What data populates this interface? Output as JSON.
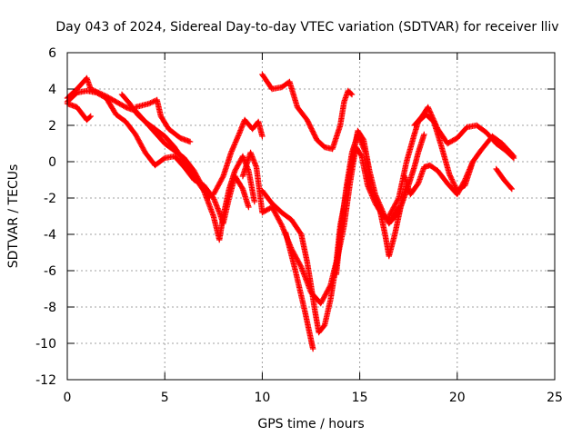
{
  "chart_data": {
    "type": "scatter",
    "title": "Day 043 of 2024, Sidereal Day-to-day VTEC variation (SDTVAR) for receiver lliv",
    "xlabel": "GPS time / hours",
    "ylabel": "SDTVAR / TECUs",
    "xlim": [
      0,
      25
    ],
    "ylim": [
      -12,
      6
    ],
    "xticks": [
      0,
      5,
      10,
      15,
      20,
      25
    ],
    "yticks": [
      -12,
      -10,
      -8,
      -6,
      -4,
      -2,
      0,
      2,
      4,
      6
    ],
    "grid": true,
    "marker": "plus",
    "color": "#ff0000",
    "series": [
      {
        "values": [
          [
            0,
            3.5
          ],
          [
            0.5,
            4.0
          ],
          [
            1.0,
            4.6
          ],
          [
            1.2,
            4.0
          ],
          [
            2.0,
            3.6
          ],
          [
            2.5,
            3.3
          ],
          [
            3.0,
            3.0
          ],
          [
            3.5,
            2.8
          ],
          [
            4.0,
            2.2
          ],
          [
            4.5,
            1.8
          ],
          [
            5.0,
            1.4
          ],
          [
            5.5,
            0.8
          ],
          [
            6.0,
            0.0
          ],
          [
            6.5,
            -0.8
          ],
          [
            7.0,
            -1.6
          ],
          [
            7.5,
            -3.0
          ],
          [
            7.8,
            -4.3
          ],
          [
            8.0,
            -3.0
          ],
          [
            8.3,
            -1.5
          ],
          [
            8.6,
            -0.5
          ],
          [
            9.0,
            0.3
          ],
          [
            9.3,
            -0.5
          ],
          [
            9.6,
            -2.2
          ]
        ]
      },
      {
        "values": [
          [
            0,
            3.3
          ],
          [
            0.5,
            3.8
          ],
          [
            1.0,
            3.9
          ],
          [
            1.5,
            3.8
          ],
          [
            2.0,
            3.5
          ],
          [
            2.5,
            2.6
          ],
          [
            3.0,
            2.2
          ],
          [
            3.5,
            1.5
          ],
          [
            4.0,
            0.5
          ],
          [
            4.5,
            -0.2
          ],
          [
            5.0,
            0.2
          ],
          [
            5.5,
            0.3
          ],
          [
            6.0,
            -0.3
          ],
          [
            6.5,
            -1.0
          ],
          [
            7.0,
            -1.3
          ],
          [
            7.5,
            -2.0
          ],
          [
            7.8,
            -2.8
          ],
          [
            8.0,
            -3.4
          ],
          [
            8.3,
            -2.0
          ],
          [
            8.6,
            -0.8
          ],
          [
            9.0,
            -1.5
          ],
          [
            9.3,
            -2.5
          ]
        ]
      },
      {
        "values": [
          [
            0,
            3.2
          ],
          [
            0.5,
            3.0
          ],
          [
            1.0,
            2.3
          ],
          [
            1.2,
            2.5
          ]
        ]
      },
      {
        "values": [
          [
            2.8,
            3.7
          ],
          [
            3.2,
            3.2
          ],
          [
            3.6,
            2.6
          ],
          [
            4.0,
            2.2
          ],
          [
            4.5,
            1.6
          ],
          [
            5.0,
            1.0
          ],
          [
            5.5,
            0.6
          ],
          [
            6.0,
            0.2
          ],
          [
            6.5,
            -0.5
          ],
          [
            7.0,
            -1.5
          ],
          [
            7.3,
            -2.0
          ]
        ]
      },
      {
        "values": [
          [
            3.5,
            3.0
          ],
          [
            4.2,
            3.2
          ],
          [
            4.6,
            3.4
          ],
          [
            4.8,
            2.5
          ],
          [
            5.2,
            1.8
          ],
          [
            5.8,
            1.3
          ],
          [
            6.3,
            1.1
          ]
        ]
      },
      {
        "values": [
          [
            7.5,
            -1.8
          ],
          [
            8.0,
            -0.8
          ],
          [
            8.4,
            0.5
          ],
          [
            8.8,
            1.5
          ],
          [
            9.1,
            2.3
          ],
          [
            9.5,
            1.8
          ],
          [
            9.8,
            2.2
          ],
          [
            10.0,
            1.4
          ]
        ]
      },
      {
        "values": [
          [
            9.0,
            -0.8
          ],
          [
            9.4,
            0.5
          ],
          [
            9.7,
            -0.3
          ],
          [
            10.0,
            -2.8
          ],
          [
            10.5,
            -2.5
          ],
          [
            11.0,
            -3.5
          ],
          [
            11.5,
            -4.8
          ],
          [
            12.0,
            -5.8
          ],
          [
            12.5,
            -7.2
          ],
          [
            13.0,
            -7.8
          ],
          [
            13.5,
            -6.8
          ],
          [
            13.8,
            -5.5
          ],
          [
            14.0,
            -3.5
          ],
          [
            14.3,
            -1.8
          ],
          [
            14.6,
            0.0
          ],
          [
            14.9,
            1.7
          ],
          [
            15.2,
            1.2
          ],
          [
            15.5,
            -0.5
          ],
          [
            15.8,
            -1.8
          ],
          [
            16.2,
            -2.8
          ],
          [
            16.5,
            -3.4
          ],
          [
            17.0,
            -2.8
          ],
          [
            17.4,
            -1.3
          ]
        ]
      },
      {
        "values": [
          [
            10.0,
            -1.6
          ],
          [
            10.5,
            -2.3
          ],
          [
            11.0,
            -2.8
          ],
          [
            11.5,
            -3.2
          ],
          [
            12.0,
            -4.0
          ],
          [
            12.3,
            -5.5
          ],
          [
            12.5,
            -6.8
          ],
          [
            12.7,
            -8.2
          ],
          [
            12.9,
            -9.4
          ],
          [
            13.2,
            -9.0
          ],
          [
            13.5,
            -7.6
          ],
          [
            13.8,
            -5.6
          ],
          [
            14.2,
            -3.5
          ],
          [
            14.5,
            -1.2
          ],
          [
            14.8,
            0.8
          ],
          [
            15.1,
            0.3
          ],
          [
            15.4,
            -1.3
          ],
          [
            15.8,
            -2.3
          ],
          [
            16.2,
            -3.0
          ],
          [
            16.6,
            -3.2
          ],
          [
            17.0,
            -2.5
          ]
        ]
      },
      {
        "values": [
          [
            11.2,
            -3.9
          ],
          [
            11.7,
            -6.0
          ],
          [
            12.2,
            -8.3
          ],
          [
            12.5,
            -9.8
          ],
          [
            12.6,
            -10.3
          ]
        ]
      },
      {
        "values": [
          [
            10.0,
            4.8
          ],
          [
            10.5,
            4.0
          ],
          [
            11.0,
            4.1
          ],
          [
            11.4,
            4.4
          ],
          [
            11.8,
            3.0
          ],
          [
            12.3,
            2.3
          ],
          [
            12.8,
            1.2
          ],
          [
            13.2,
            0.8
          ],
          [
            13.6,
            0.7
          ],
          [
            14.0,
            2.0
          ],
          [
            14.2,
            3.3
          ],
          [
            14.4,
            3.9
          ],
          [
            14.6,
            3.7
          ]
        ]
      },
      {
        "values": [
          [
            13.8,
            -6.2
          ],
          [
            14.0,
            -4.0
          ],
          [
            14.3,
            -1.5
          ],
          [
            14.6,
            0.5
          ],
          [
            14.9,
            1.5
          ],
          [
            15.3,
            0.5
          ],
          [
            15.6,
            -1.5
          ],
          [
            16.0,
            -2.5
          ],
          [
            16.3,
            -4.0
          ],
          [
            16.5,
            -5.2
          ],
          [
            16.8,
            -4.0
          ],
          [
            17.1,
            -2.5
          ],
          [
            17.5,
            -1.3
          ],
          [
            17.8,
            -0.3
          ],
          [
            18.0,
            0.5
          ],
          [
            18.3,
            1.5
          ]
        ]
      },
      {
        "values": [
          [
            16.5,
            -3.0
          ],
          [
            17.0,
            -2.0
          ],
          [
            17.4,
            0.0
          ],
          [
            17.8,
            1.5
          ],
          [
            18.0,
            2.2
          ],
          [
            18.4,
            2.6
          ],
          [
            18.8,
            2.2
          ],
          [
            19.2,
            0.8
          ],
          [
            19.6,
            -0.7
          ],
          [
            20.0,
            -1.6
          ],
          [
            20.4,
            -1.3
          ],
          [
            20.8,
            0.0
          ],
          [
            21.2,
            0.6
          ],
          [
            21.8,
            1.4
          ],
          [
            22.3,
            1.0
          ],
          [
            22.9,
            0.3
          ]
        ]
      },
      {
        "values": [
          [
            17.8,
            2.0
          ],
          [
            18.2,
            2.5
          ],
          [
            18.5,
            3.0
          ],
          [
            19.0,
            1.8
          ],
          [
            19.5,
            1.0
          ],
          [
            20.0,
            1.3
          ],
          [
            20.5,
            1.9
          ],
          [
            21.0,
            2.0
          ],
          [
            21.5,
            1.6
          ],
          [
            22.0,
            1.0
          ],
          [
            22.5,
            0.6
          ],
          [
            22.9,
            0.2
          ]
        ]
      },
      {
        "values": [
          [
            17.3,
            -0.8
          ],
          [
            17.6,
            -1.8
          ],
          [
            18.0,
            -1.2
          ],
          [
            18.3,
            -0.3
          ],
          [
            18.6,
            -0.2
          ],
          [
            19.0,
            -0.5
          ],
          [
            19.5,
            -1.2
          ],
          [
            20.0,
            -1.8
          ],
          [
            20.4,
            -1.0
          ],
          [
            20.8,
            0.0
          ]
        ]
      },
      {
        "values": [
          [
            22.0,
            -0.4
          ],
          [
            22.4,
            -1.0
          ],
          [
            22.8,
            -1.5
          ]
        ]
      }
    ]
  }
}
